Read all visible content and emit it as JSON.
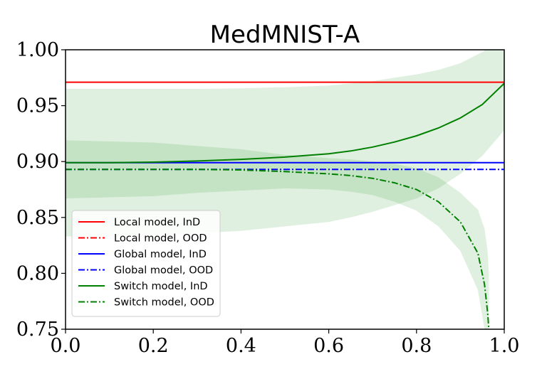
{
  "chart_data": {
    "type": "line",
    "title": "MedMNIST-A",
    "xlabel": "",
    "ylabel": "",
    "xlim": [
      0.0,
      1.0
    ],
    "ylim": [
      0.75,
      1.0
    ],
    "xticks": [
      "0.0",
      "0.2",
      "0.4",
      "0.6",
      "0.8",
      "1.0"
    ],
    "yticks": [
      "0.75",
      "0.80",
      "0.85",
      "0.90",
      "0.95",
      "1.00"
    ],
    "legend_position": "lower-left",
    "series": [
      {
        "name": "Local model, InD",
        "color": "#ff0000",
        "style": "solid",
        "x": [
          0.0,
          1.0
        ],
        "y": [
          0.971,
          0.971
        ]
      },
      {
        "name": "Local model, OOD",
        "color": "#ff0000",
        "style": "dashdot",
        "x": [],
        "y": []
      },
      {
        "name": "Global model, InD",
        "color": "#0000ff",
        "style": "solid",
        "x": [
          0.0,
          1.0
        ],
        "y": [
          0.899,
          0.899
        ]
      },
      {
        "name": "Global model, OOD",
        "color": "#0000ff",
        "style": "dashdot",
        "x": [
          0.0,
          1.0
        ],
        "y": [
          0.893,
          0.893
        ]
      },
      {
        "name": "Switch model, InD",
        "color": "#008000",
        "style": "solid",
        "x": [
          0.0,
          0.1,
          0.2,
          0.3,
          0.4,
          0.5,
          0.6,
          0.65,
          0.7,
          0.75,
          0.8,
          0.85,
          0.9,
          0.95,
          1.0
        ],
        "y": [
          0.899,
          0.899,
          0.8995,
          0.9005,
          0.902,
          0.904,
          0.907,
          0.9095,
          0.913,
          0.9175,
          0.923,
          0.93,
          0.939,
          0.951,
          0.97
        ],
        "band_upper": [
          0.965,
          0.965,
          0.965,
          0.965,
          0.9655,
          0.9665,
          0.968,
          0.97,
          0.972,
          0.975,
          0.978,
          0.982,
          0.988,
          0.998,
          1.01
        ],
        "band_lower": [
          0.833,
          0.833,
          0.834,
          0.836,
          0.838,
          0.842,
          0.846,
          0.85,
          0.855,
          0.861,
          0.867,
          0.876,
          0.889,
          0.905,
          0.928
        ]
      },
      {
        "name": "Switch model, OOD",
        "color": "#008000",
        "style": "dashdot",
        "x": [
          0.0,
          0.1,
          0.2,
          0.3,
          0.4,
          0.5,
          0.6,
          0.65,
          0.7,
          0.75,
          0.8,
          0.85,
          0.9,
          0.94,
          0.955,
          0.962,
          0.965
        ],
        "y": [
          0.893,
          0.893,
          0.893,
          0.893,
          0.8925,
          0.891,
          0.889,
          0.8875,
          0.885,
          0.881,
          0.875,
          0.864,
          0.846,
          0.818,
          0.79,
          0.765,
          0.75
        ],
        "band_upper": [
          0.919,
          0.918,
          0.917,
          0.914,
          0.911,
          0.906,
          0.903,
          0.902,
          0.9,
          0.898,
          0.894,
          0.886,
          0.872,
          0.857,
          0.84,
          0.82,
          0.8
        ],
        "band_lower": [
          0.867,
          0.868,
          0.869,
          0.872,
          0.874,
          0.876,
          0.875,
          0.873,
          0.87,
          0.864,
          0.856,
          0.842,
          0.82,
          0.785,
          0.75,
          0.75,
          0.75
        ]
      }
    ]
  }
}
